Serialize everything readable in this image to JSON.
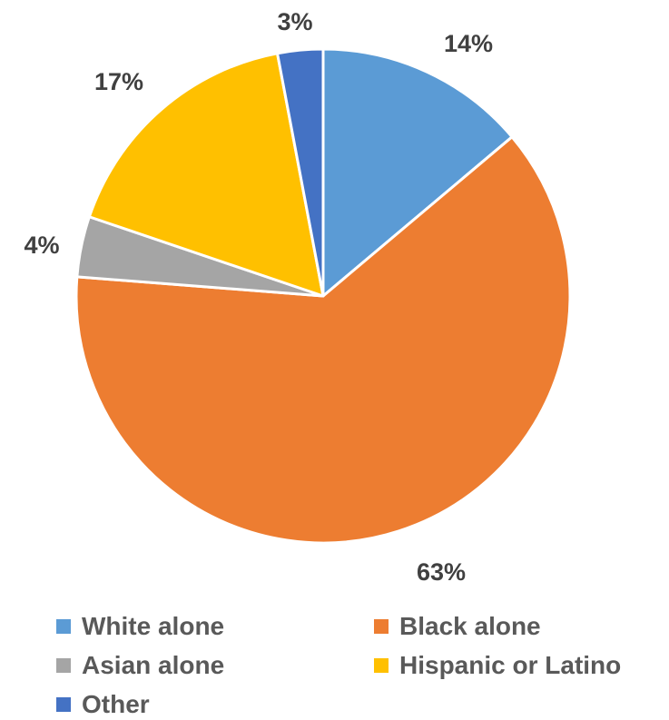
{
  "chart_data": {
    "type": "pie",
    "categories": [
      "White alone",
      "Black alone",
      "Asian alone",
      "Hispanic or Latino",
      "Other"
    ],
    "values": [
      14,
      63,
      4,
      17,
      3
    ],
    "data_labels": [
      "14%",
      "63%",
      "4%",
      "17%",
      "3%"
    ],
    "colors": [
      "#5B9BD5",
      "#ED7D31",
      "#A5A5A5",
      "#FFC000",
      "#4472C4"
    ],
    "start_angle_deg": 0,
    "direction": "clockwise",
    "legend_position": "bottom",
    "title": ""
  }
}
